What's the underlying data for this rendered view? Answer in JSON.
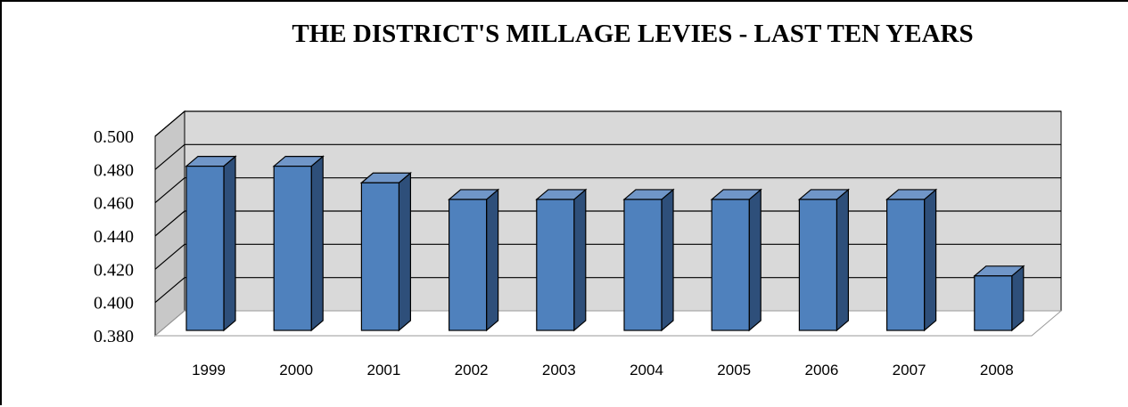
{
  "chart_data": {
    "type": "bar",
    "title": "THE DISTRICT'S MILLAGE LEVIES - LAST TEN YEARS",
    "xlabel": "",
    "ylabel": "",
    "categories": [
      "1999",
      "2000",
      "2001",
      "2002",
      "2003",
      "2004",
      "2005",
      "2006",
      "2007",
      "2008"
    ],
    "values": [
      0.482,
      0.482,
      0.472,
      0.462,
      0.462,
      0.462,
      0.462,
      0.462,
      0.462,
      0.416
    ],
    "ylim": [
      0.38,
      0.5
    ],
    "yticks": [
      "0.500",
      "0.480",
      "0.460",
      "0.440",
      "0.420",
      "0.400",
      "0.380"
    ],
    "grid": true,
    "style": "3d",
    "colors": {
      "bar_front": "#4f81bd",
      "bar_side": "#2e4f7a",
      "bar_top": "#7096c8",
      "wall": "#d9d9d9",
      "floor": "#ffffff"
    }
  }
}
